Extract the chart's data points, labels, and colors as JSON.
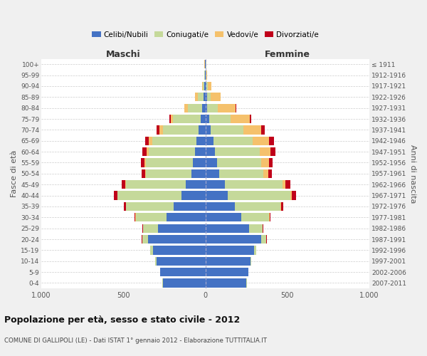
{
  "age_groups": [
    "100+",
    "95-99",
    "90-94",
    "85-89",
    "80-84",
    "75-79",
    "70-74",
    "65-69",
    "60-64",
    "55-59",
    "50-54",
    "45-49",
    "40-44",
    "35-39",
    "30-34",
    "25-29",
    "20-24",
    "15-19",
    "10-14",
    "5-9",
    "0-4"
  ],
  "birth_years": [
    "≤ 1911",
    "1912-1916",
    "1917-1921",
    "1922-1926",
    "1927-1931",
    "1932-1936",
    "1937-1941",
    "1942-1946",
    "1947-1951",
    "1952-1956",
    "1957-1961",
    "1962-1966",
    "1967-1971",
    "1972-1976",
    "1977-1981",
    "1982-1986",
    "1987-1991",
    "1992-1996",
    "1997-2001",
    "2002-2006",
    "2007-2011"
  ],
  "maschi_celibi": [
    2,
    2,
    5,
    12,
    18,
    30,
    40,
    55,
    65,
    75,
    85,
    120,
    145,
    195,
    235,
    290,
    350,
    320,
    300,
    275,
    260
  ],
  "maschi_coniugati": [
    2,
    3,
    12,
    35,
    88,
    170,
    220,
    270,
    280,
    290,
    280,
    365,
    390,
    290,
    190,
    90,
    35,
    15,
    5,
    2,
    2
  ],
  "maschi_vedovi": [
    1,
    2,
    5,
    18,
    22,
    12,
    22,
    22,
    12,
    6,
    4,
    2,
    2,
    1,
    1,
    1,
    1,
    0,
    0,
    0,
    0
  ],
  "maschi_divorziati": [
    0,
    0,
    0,
    0,
    2,
    8,
    18,
    22,
    28,
    22,
    20,
    22,
    20,
    12,
    6,
    2,
    1,
    0,
    0,
    0,
    0
  ],
  "femmine_nubili": [
    2,
    2,
    5,
    10,
    12,
    22,
    32,
    50,
    60,
    70,
    85,
    118,
    138,
    178,
    218,
    268,
    338,
    298,
    275,
    260,
    250
  ],
  "femmine_coniugate": [
    2,
    3,
    8,
    22,
    65,
    130,
    200,
    240,
    270,
    272,
    268,
    352,
    378,
    278,
    170,
    80,
    33,
    12,
    5,
    2,
    2
  ],
  "femmine_vedove": [
    2,
    5,
    22,
    60,
    108,
    118,
    108,
    98,
    68,
    44,
    30,
    18,
    12,
    6,
    3,
    2,
    1,
    0,
    0,
    0,
    0
  ],
  "femmine_divorziate": [
    0,
    0,
    0,
    0,
    3,
    10,
    22,
    28,
    30,
    24,
    22,
    28,
    24,
    14,
    7,
    3,
    1,
    0,
    0,
    0,
    0
  ],
  "color_celibi": "#4472c4",
  "color_coniugati": "#c5d99a",
  "color_vedovi": "#f5c16c",
  "color_divorziati": "#c0001a",
  "xlim": 1000,
  "title": "Popolazione per età, sesso e stato civile - 2012",
  "subtitle": "COMUNE DI GALLIPOLI (LE) - Dati ISTAT 1° gennaio 2012 - Elaborazione TUTTITALIA.IT",
  "ylabel_left": "Fasce di età",
  "ylabel_right": "Anni di nascita",
  "label_maschi": "Maschi",
  "label_femmine": "Femmine",
  "legend_labels": [
    "Celibi/Nubili",
    "Coniugati/e",
    "Vedovi/e",
    "Divorziati/e"
  ],
  "bg_color": "#f0f0f0",
  "plot_bg": "#ffffff",
  "xtick_labels": [
    "1.000",
    "500",
    "0",
    "500",
    "1.000"
  ]
}
